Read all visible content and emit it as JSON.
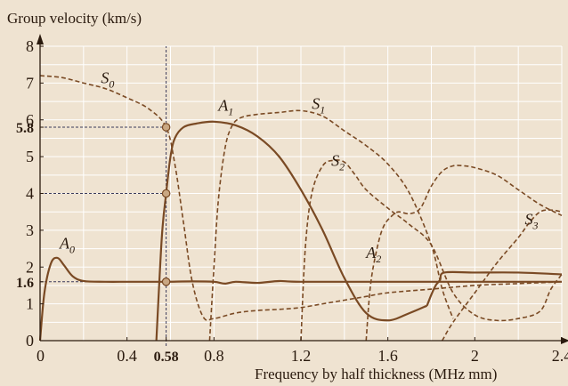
{
  "chart_data": {
    "type": "line",
    "ylabel": "Group velocity (km/s)",
    "xlabel": "Frequency by half thickness (MHz mm)",
    "xlim": [
      0,
      2.4
    ],
    "ylim": [
      0,
      8
    ],
    "grid": true,
    "x_ticks": [
      "0",
      "0.4",
      "0.58",
      "0.8",
      "1.2",
      "1.6",
      "2",
      "2.4"
    ],
    "x_tick_values": [
      0,
      0.4,
      0.58,
      0.8,
      1.2,
      1.6,
      2,
      2.4
    ],
    "y_ticks": [
      "0",
      "1",
      "1.6",
      "2",
      "3",
      "4",
      "5",
      "5.8",
      "6",
      "7",
      "8"
    ],
    "y_tick_values": [
      0,
      1,
      1.6,
      2,
      3,
      4,
      5,
      5.8,
      6,
      7,
      8
    ],
    "highlight_ticks": {
      "x": [
        "0.58"
      ],
      "y": [
        "1.6",
        "5.8"
      ]
    },
    "marker": {
      "x": 0.58,
      "y_values": [
        1.6,
        4.0,
        5.8
      ]
    },
    "series": [
      {
        "label": "A",
        "sub": "0",
        "style": "solid",
        "label_pos": [
          0.09,
          2.5
        ],
        "x": [
          0,
          0.02,
          0.05,
          0.08,
          0.11,
          0.15,
          0.2,
          0.3,
          0.4,
          0.5,
          0.58,
          0.7,
          0.8,
          0.85,
          0.9,
          1.0,
          1.1,
          1.2,
          1.6,
          2.0,
          2.4
        ],
        "y": [
          0,
          1.3,
          2.1,
          2.25,
          2.05,
          1.75,
          1.62,
          1.6,
          1.6,
          1.6,
          1.6,
          1.61,
          1.6,
          1.55,
          1.6,
          1.57,
          1.62,
          1.6,
          1.6,
          1.6,
          1.6
        ]
      },
      {
        "label": "A",
        "sub": "1",
        "style": "solid",
        "label_pos": [
          0.82,
          6.25
        ],
        "x": [
          0.535,
          0.56,
          0.58,
          0.6,
          0.62,
          0.66,
          0.72,
          0.8,
          0.9,
          1.0,
          1.1,
          1.2,
          1.3,
          1.4,
          1.5,
          1.6,
          1.7,
          1.78
        ],
        "y": [
          0,
          2.8,
          4.0,
          5.0,
          5.5,
          5.8,
          5.9,
          5.95,
          5.85,
          5.55,
          5.0,
          4.1,
          3.0,
          1.7,
          0.75,
          0.55,
          0.75,
          0.95
        ]
      },
      {
        "label": "A",
        "sub": "2",
        "style": "solid",
        "label_pos": [
          1.5,
          2.25
        ],
        "x": [
          1.78,
          1.8,
          1.82,
          1.84,
          1.86,
          2.0,
          2.2,
          2.4
        ],
        "y": [
          0.95,
          1.25,
          1.5,
          1.65,
          1.85,
          1.85,
          1.85,
          1.8
        ]
      },
      {
        "label": "S",
        "sub": "0",
        "style": "dashed",
        "label_pos": [
          0.28,
          7.0
        ],
        "x": [
          0,
          0.1,
          0.2,
          0.3,
          0.4,
          0.5,
          0.58,
          0.62,
          0.66,
          0.7,
          0.75,
          0.8,
          0.9,
          1.0,
          1.1,
          1.2,
          1.3,
          1.4,
          1.5,
          1.6,
          1.8,
          2.0,
          2.2,
          2.4
        ],
        "y": [
          7.2,
          7.15,
          7.0,
          6.85,
          6.6,
          6.3,
          5.8,
          4.8,
          3.2,
          1.6,
          0.65,
          0.6,
          0.75,
          0.82,
          0.85,
          0.9,
          1.0,
          1.1,
          1.2,
          1.3,
          1.4,
          1.5,
          1.55,
          1.6
        ]
      },
      {
        "label": "S",
        "sub": "1",
        "style": "dashed",
        "label_pos": [
          1.25,
          6.3
        ],
        "x": [
          0.78,
          0.8,
          0.82,
          0.85,
          0.88,
          0.92,
          1.0,
          1.1,
          1.2,
          1.3,
          1.4,
          1.5,
          1.6,
          1.7,
          1.8,
          1.85,
          1.9
        ],
        "y": [
          0,
          2.0,
          3.8,
          5.2,
          5.8,
          6.05,
          6.15,
          6.2,
          6.25,
          6.1,
          5.7,
          5.3,
          4.8,
          4.0,
          2.6,
          1.4,
          0.6
        ]
      },
      {
        "label": "S",
        "sub": "2",
        "style": "dashed",
        "label_pos": [
          1.34,
          4.75
        ],
        "x": [
          1.2,
          1.22,
          1.25,
          1.3,
          1.35,
          1.4,
          1.45,
          1.5,
          1.6,
          1.7,
          1.8,
          1.9,
          2.0,
          2.1,
          2.2,
          2.3,
          2.35,
          2.4
        ],
        "y": [
          0,
          2.5,
          4.0,
          4.75,
          4.9,
          4.85,
          4.5,
          4.1,
          3.6,
          3.15,
          2.6,
          1.3,
          0.7,
          0.55,
          0.6,
          0.8,
          1.4,
          1.8
        ]
      },
      {
        "label": "S",
        "sub": "3",
        "style": "dashed",
        "label_pos": [
          2.23,
          3.15
        ],
        "x": [
          1.5,
          1.52,
          1.55,
          1.58,
          1.62,
          1.65,
          1.7,
          1.75,
          1.8,
          1.85,
          1.9,
          1.95,
          2.0,
          2.1,
          2.2,
          2.3,
          2.4
        ],
        "y": [
          0,
          1.5,
          2.5,
          3.1,
          3.4,
          3.5,
          3.45,
          3.6,
          4.2,
          4.6,
          4.75,
          4.75,
          4.7,
          4.5,
          4.1,
          3.7,
          3.4
        ]
      },
      {
        "label": "",
        "sub": "",
        "style": "dashed",
        "x": [
          1.85,
          1.9,
          2.0,
          2.1,
          2.2,
          2.25,
          2.3,
          2.35,
          2.4
        ],
        "y": [
          0,
          0.5,
          1.3,
          2.1,
          2.8,
          3.2,
          3.5,
          3.55,
          3.5
        ]
      }
    ]
  },
  "colors": {
    "background": "#efe3d1",
    "grid": "#ffffff",
    "curve": "#7a4a24",
    "axis": "#2a1a0e",
    "marker_fill": "#c9a782",
    "guide": "#3b3b5a"
  }
}
